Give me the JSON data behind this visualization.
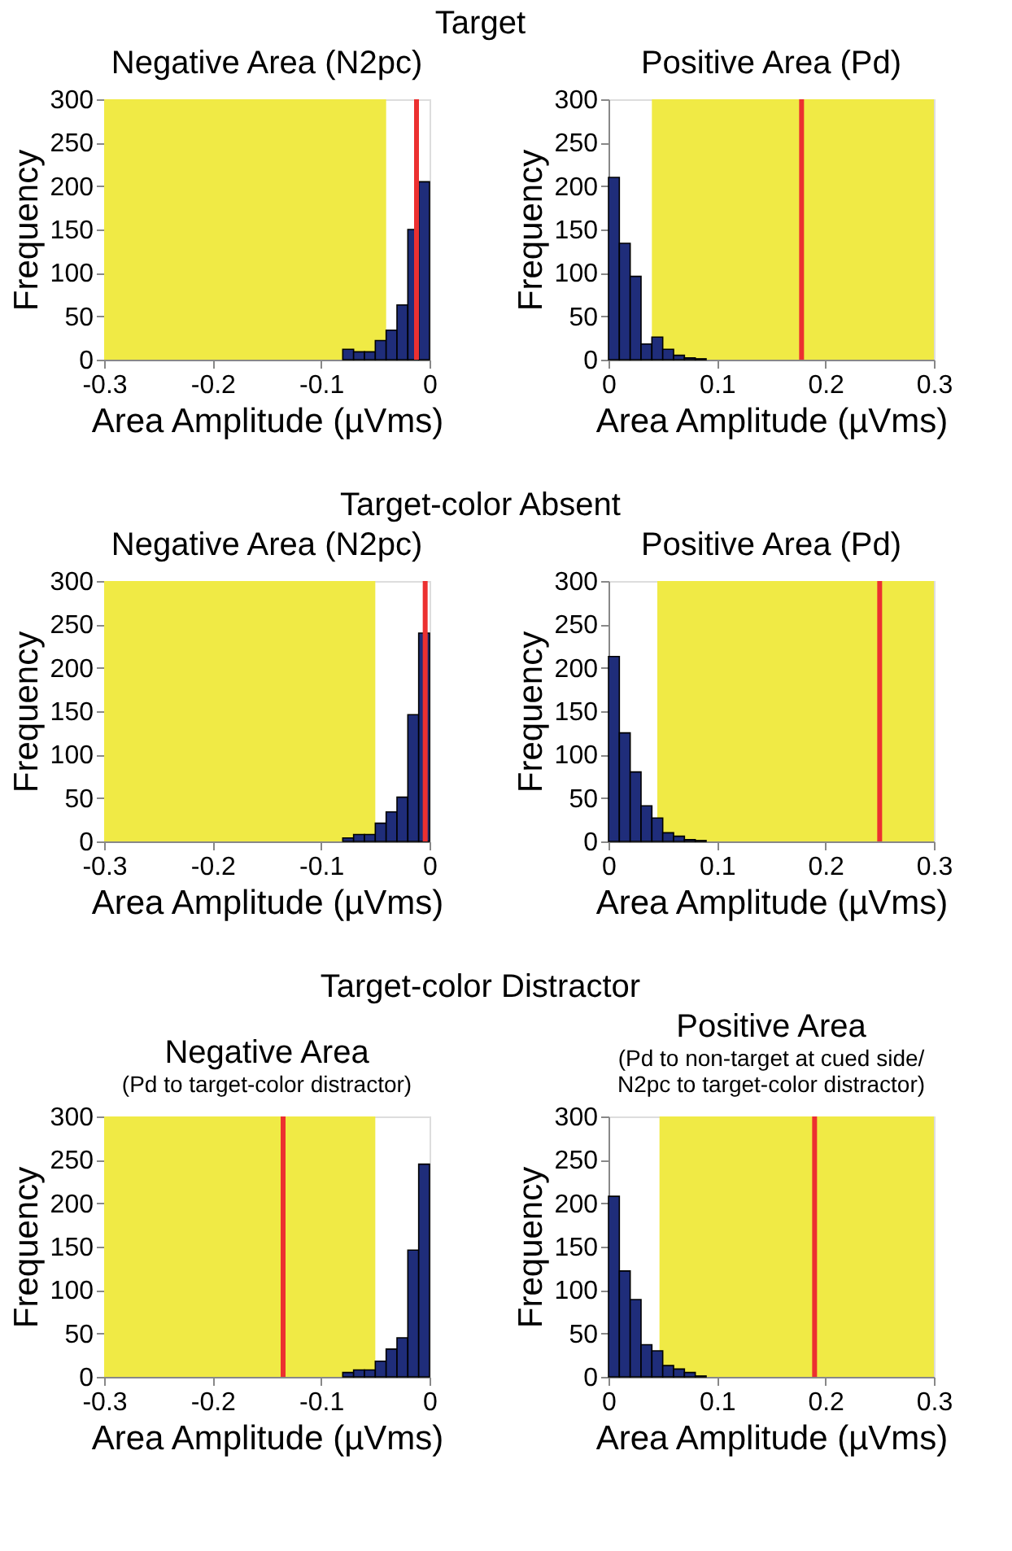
{
  "chart_data": [
    {
      "type": "other",
      "title": "Target"
    },
    {
      "type": "histogram",
      "title": "Negative Area (N2pc)",
      "xlabel": "Area Amplitude (µVms)",
      "ylabel": "Frequency",
      "bins": [
        -0.08,
        -0.07,
        -0.06,
        -0.05,
        -0.04,
        -0.03,
        -0.02,
        -0.01,
        0
      ],
      "values": [
        12,
        9,
        9,
        22,
        34,
        63,
        150,
        205
      ],
      "color": "#1f2d7a",
      "xlim": [
        -0.3,
        0
      ],
      "xticks": [
        -0.3,
        -0.2,
        -0.1,
        0
      ],
      "ylim": [
        0,
        300
      ],
      "yticks": [
        0,
        50,
        100,
        150,
        200,
        250,
        300
      ],
      "bands": [
        {
          "axis": "x",
          "from": -0.3,
          "to": -0.04,
          "color": "#f0ea45"
        }
      ],
      "ref_lines": [
        {
          "axis": "x",
          "value": -0.012,
          "color": "#ec3030"
        }
      ],
      "grid": false
    },
    {
      "type": "histogram",
      "title": "Positive Area (Pd)",
      "xlabel": "Area Amplitude (µVms)",
      "ylabel": "Frequency",
      "bins": [
        0,
        0.01,
        0.02,
        0.03,
        0.04,
        0.05,
        0.06,
        0.07,
        0.08,
        0.09
      ],
      "values": [
        210,
        134,
        96,
        18,
        26,
        12,
        5,
        2,
        1
      ],
      "color": "#1f2d7a",
      "xlim": [
        0,
        0.3
      ],
      "xticks": [
        0,
        0.1,
        0.2,
        0.3
      ],
      "ylim": [
        0,
        300
      ],
      "yticks": [
        0,
        50,
        100,
        150,
        200,
        250,
        300
      ],
      "bands": [
        {
          "axis": "x",
          "from": 0.04,
          "to": 0.3,
          "color": "#f0ea45"
        }
      ],
      "ref_lines": [
        {
          "axis": "x",
          "value": 0.178,
          "color": "#ec3030"
        }
      ],
      "grid": false
    },
    {
      "type": "other",
      "title": "Target-color Absent"
    },
    {
      "type": "histogram",
      "title": "Negative Area (N2pc)",
      "xlabel": "Area Amplitude (µVms)",
      "ylabel": "Frequency",
      "bins": [
        -0.08,
        -0.07,
        -0.06,
        -0.05,
        -0.04,
        -0.03,
        -0.02,
        -0.01,
        0
      ],
      "values": [
        4,
        8,
        8,
        21,
        34,
        51,
        146,
        240
      ],
      "color": "#1f2d7a",
      "xlim": [
        -0.3,
        0
      ],
      "xticks": [
        -0.3,
        -0.2,
        -0.1,
        0
      ],
      "ylim": [
        0,
        300
      ],
      "yticks": [
        0,
        50,
        100,
        150,
        200,
        250,
        300
      ],
      "bands": [
        {
          "axis": "x",
          "from": -0.3,
          "to": -0.05,
          "color": "#f0ea45"
        }
      ],
      "ref_lines": [
        {
          "axis": "x",
          "value": -0.004,
          "color": "#ec3030"
        }
      ],
      "grid": false
    },
    {
      "type": "histogram",
      "title": "Positive Area (Pd)",
      "xlabel": "Area Amplitude (µVms)",
      "ylabel": "Frequency",
      "bins": [
        0,
        0.01,
        0.02,
        0.03,
        0.04,
        0.05,
        0.06,
        0.07,
        0.08,
        0.09
      ],
      "values": [
        213,
        125,
        80,
        41,
        27,
        10,
        6,
        2,
        1
      ],
      "color": "#1f2d7a",
      "xlim": [
        0,
        0.3
      ],
      "xticks": [
        0,
        0.1,
        0.2,
        0.3
      ],
      "ylim": [
        0,
        300
      ],
      "yticks": [
        0,
        50,
        100,
        150,
        200,
        250,
        300
      ],
      "bands": [
        {
          "axis": "x",
          "from": 0.045,
          "to": 0.3,
          "color": "#f0ea45"
        }
      ],
      "ref_lines": [
        {
          "axis": "x",
          "value": 0.25,
          "color": "#ec3030"
        }
      ],
      "grid": false
    },
    {
      "type": "other",
      "title": "Target-color Distractor"
    },
    {
      "type": "histogram",
      "title": "Negative Area",
      "subtitle": "(Pd to target-color distractor)",
      "xlabel": "Area Amplitude (µVms)",
      "ylabel": "Frequency",
      "bins": [
        -0.08,
        -0.07,
        -0.06,
        -0.05,
        -0.04,
        -0.03,
        -0.02,
        -0.01,
        0
      ],
      "values": [
        5,
        8,
        8,
        18,
        32,
        45,
        146,
        245
      ],
      "color": "#1f2d7a",
      "xlim": [
        -0.3,
        0
      ],
      "xticks": [
        -0.3,
        -0.2,
        -0.1,
        0
      ],
      "ylim": [
        0,
        300
      ],
      "yticks": [
        0,
        50,
        100,
        150,
        200,
        250,
        300
      ],
      "bands": [
        {
          "axis": "x",
          "from": -0.3,
          "to": -0.05,
          "color": "#f0ea45"
        }
      ],
      "ref_lines": [
        {
          "axis": "x",
          "value": -0.135,
          "color": "#ec3030"
        }
      ],
      "grid": false
    },
    {
      "type": "histogram",
      "title": "Positive Area",
      "subtitle": "(Pd to non-target at cued side/\nN2pc to target-color distractor)",
      "xlabel": "Area Amplitude (µVms)",
      "ylabel": "Frequency",
      "bins": [
        0,
        0.01,
        0.02,
        0.03,
        0.04,
        0.05,
        0.06,
        0.07,
        0.08,
        0.09
      ],
      "values": [
        208,
        122,
        89,
        37,
        30,
        13,
        9,
        5,
        1
      ],
      "color": "#1f2d7a",
      "xlim": [
        0,
        0.3
      ],
      "xticks": [
        0,
        0.1,
        0.2,
        0.3
      ],
      "ylim": [
        0,
        300
      ],
      "yticks": [
        0,
        50,
        100,
        150,
        200,
        250,
        300
      ],
      "bands": [
        {
          "axis": "x",
          "from": 0.047,
          "to": 0.3,
          "color": "#f0ea45"
        }
      ],
      "ref_lines": [
        {
          "axis": "x",
          "value": 0.19,
          "color": "#ec3030"
        }
      ],
      "grid": false
    }
  ]
}
